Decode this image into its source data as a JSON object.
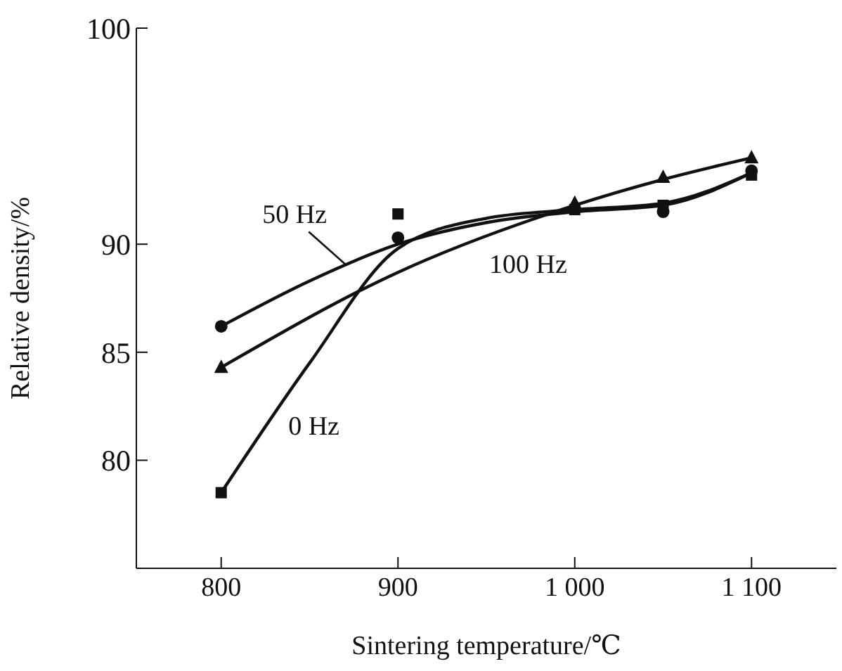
{
  "chart_data": {
    "type": "line",
    "xlabel": "Sintering temperature/℃",
    "ylabel": "Relative density/%",
    "xlim": [
      752,
      1148
    ],
    "xticks": [
      800,
      900,
      {
        "value": 1000,
        "label": "1 000"
      },
      {
        "value": 1100,
        "label": "1 100"
      }
    ],
    "ylim": [
      75,
      100
    ],
    "yticks": [
      80,
      85,
      90,
      100
    ],
    "grid": false,
    "legend": false,
    "series": [
      {
        "type": "scatter",
        "color": "#111111",
        "marker": "square",
        "x": [
          800,
          900,
          1000,
          1050,
          1100
        ],
        "values": [
          78.5,
          91.4,
          91.6,
          91.8,
          93.2
        ]
      },
      {
        "type": "scatter",
        "color": "#111111",
        "marker": "circle",
        "x": [
          800,
          900,
          1000,
          1050,
          1100
        ],
        "values": [
          86.2,
          90.3,
          null,
          91.5,
          93.4
        ]
      },
      {
        "type": "scatter",
        "color": "#111111",
        "marker": "triangle",
        "x": [
          800,
          1000,
          1050,
          1100
        ],
        "values": [
          84.3,
          91.9,
          93.1,
          94.0
        ]
      },
      {
        "type": "line",
        "name": "0 Hz",
        "color": "#111111",
        "marker": "none",
        "x": [
          800,
          850,
          900,
          950,
          1000,
          1050,
          1100
        ],
        "values": [
          78.5,
          84.5,
          89.8,
          91.2,
          91.6,
          91.9,
          93.3
        ]
      },
      {
        "type": "line",
        "name": "50 Hz",
        "color": "#111111",
        "marker": "none",
        "x": [
          800,
          850,
          900,
          950,
          1000,
          1050,
          1100
        ],
        "values": [
          86.2,
          88.3,
          90.0,
          91.0,
          91.5,
          91.8,
          93.3
        ]
      },
      {
        "type": "line",
        "name": "100 Hz",
        "color": "#111111",
        "marker": "none",
        "x": [
          800,
          900,
          1000,
          1050,
          1100
        ],
        "values": [
          84.3,
          88.7,
          91.8,
          93.0,
          94.0
        ]
      }
    ]
  }
}
